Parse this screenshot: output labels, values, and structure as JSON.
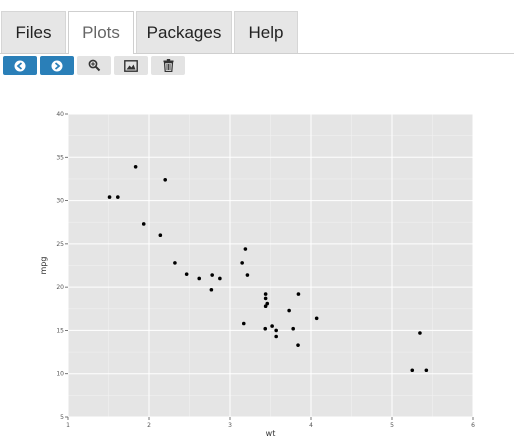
{
  "tabs": [
    {
      "label": "Files",
      "active": false
    },
    {
      "label": "Plots",
      "active": true
    },
    {
      "label": "Packages",
      "active": false
    },
    {
      "label": "Help",
      "active": false
    }
  ],
  "toolbar": {
    "buttons": [
      {
        "name": "back-button",
        "icon": "arrow-left-icon"
      },
      {
        "name": "forward-button",
        "icon": "arrow-right-icon"
      },
      {
        "name": "zoom-button",
        "icon": "magnifier-icon"
      },
      {
        "name": "export-button",
        "icon": "image-icon"
      },
      {
        "name": "clear-button",
        "icon": "trash-icon"
      }
    ]
  },
  "colors": {
    "accent": "#2a7fb8",
    "panel_bg": "#e5e5e5",
    "grid": "#ffffff",
    "point": "#000000"
  },
  "chart_data": {
    "type": "scatter",
    "xlabel": "wt",
    "ylabel": "mpg",
    "xlim": [
      1,
      6
    ],
    "ylim": [
      5,
      40
    ],
    "x_ticks": [
      1,
      2,
      3,
      4,
      5,
      6
    ],
    "y_ticks": [
      5,
      10,
      15,
      20,
      25,
      30,
      35,
      40
    ],
    "grid": true,
    "points": [
      [
        2.62,
        21.0
      ],
      [
        2.875,
        21.0
      ],
      [
        2.32,
        22.8
      ],
      [
        3.215,
        21.4
      ],
      [
        3.44,
        18.7
      ],
      [
        3.46,
        18.1
      ],
      [
        3.57,
        14.3
      ],
      [
        3.19,
        24.4
      ],
      [
        3.15,
        22.8
      ],
      [
        3.44,
        19.2
      ],
      [
        3.44,
        17.8
      ],
      [
        4.07,
        16.4
      ],
      [
        3.73,
        17.3
      ],
      [
        3.78,
        15.2
      ],
      [
        5.25,
        10.4
      ],
      [
        5.424,
        10.4
      ],
      [
        5.345,
        14.7
      ],
      [
        2.2,
        32.4
      ],
      [
        1.615,
        30.4
      ],
      [
        1.835,
        33.9
      ],
      [
        2.465,
        21.5
      ],
      [
        3.52,
        15.5
      ],
      [
        3.435,
        15.2
      ],
      [
        3.84,
        13.3
      ],
      [
        3.845,
        19.2
      ],
      [
        1.935,
        27.3
      ],
      [
        2.14,
        26.0
      ],
      [
        1.513,
        30.4
      ],
      [
        3.17,
        15.8
      ],
      [
        2.77,
        19.7
      ],
      [
        3.57,
        15.0
      ],
      [
        2.78,
        21.4
      ]
    ]
  }
}
